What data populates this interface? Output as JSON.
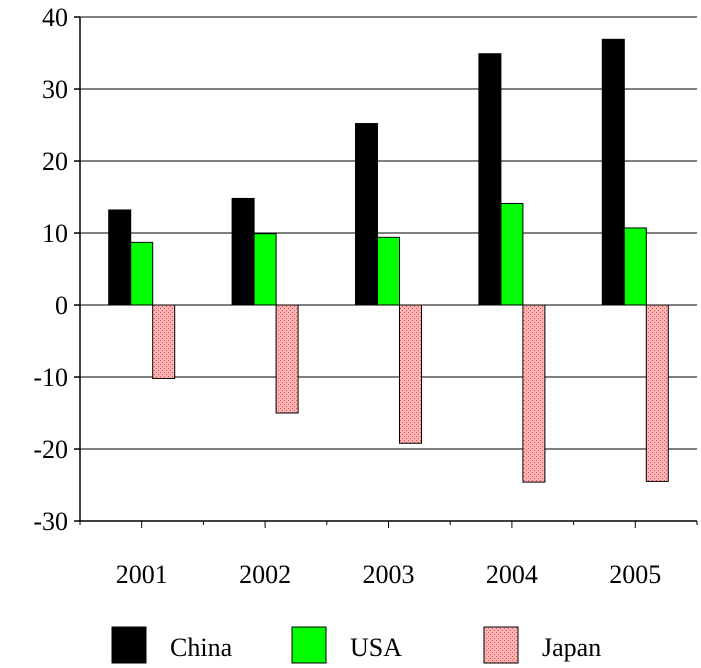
{
  "chart_data": {
    "type": "bar",
    "title": "",
    "xlabel": "",
    "ylabel": "",
    "categories": [
      "2001",
      "2002",
      "2003",
      "2004",
      "2005"
    ],
    "series": [
      {
        "name": "China",
        "values": [
          13.2,
          14.8,
          25.2,
          34.9,
          36.9
        ],
        "color": "#000000",
        "pattern": "solid"
      },
      {
        "name": "USA",
        "values": [
          8.7,
          9.9,
          9.4,
          14.1,
          10.7
        ],
        "color": "#00ff00",
        "pattern": "solid"
      },
      {
        "name": "Japan",
        "values": [
          -10.2,
          -15.0,
          -19.2,
          -24.6,
          -24.5
        ],
        "color": "#ff9a9a",
        "pattern": "dotted"
      }
    ],
    "ylim": [
      -30,
      40
    ],
    "yticks": [
      "40",
      "30",
      "20",
      "10",
      "0",
      "-10",
      "-20",
      "-30"
    ],
    "ytick_values": [
      40,
      30,
      20,
      10,
      0,
      -10,
      -20,
      -30
    ],
    "grid": true,
    "legend_position": "bottom"
  }
}
